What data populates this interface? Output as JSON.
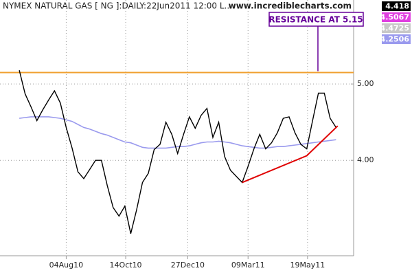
{
  "chart_data": {
    "type": "line",
    "title": "NYMEX NATURAL GAS [ NG ]:DAILY:22Jun2011 12:00 L...",
    "source": "www.incrediblecharts.com",
    "x": [
      "2010-06-09",
      "2010-06-16",
      "2010-06-23",
      "2010-06-30",
      "2010-07-07",
      "2010-07-14",
      "2010-07-21",
      "2010-07-28",
      "2010-08-04",
      "2010-08-11",
      "2010-08-18",
      "2010-08-25",
      "2010-09-01",
      "2010-09-08",
      "2010-09-15",
      "2010-09-22",
      "2010-09-29",
      "2010-10-06",
      "2010-10-13",
      "2010-10-20",
      "2010-10-27",
      "2010-11-03",
      "2010-11-10",
      "2010-11-17",
      "2010-11-24",
      "2010-12-01",
      "2010-12-08",
      "2010-12-15",
      "2010-12-22",
      "2010-12-29",
      "2011-01-05",
      "2011-01-12",
      "2011-01-19",
      "2011-01-26",
      "2011-02-02",
      "2011-02-09",
      "2011-02-16",
      "2011-02-23",
      "2011-03-02",
      "2011-03-09",
      "2011-03-16",
      "2011-03-23",
      "2011-03-30",
      "2011-04-06",
      "2011-04-13",
      "2011-04-20",
      "2011-04-27",
      "2011-05-04",
      "2011-05-11",
      "2011-05-18",
      "2011-05-25",
      "2011-06-01",
      "2011-06-08",
      "2011-06-15",
      "2011-06-22"
    ],
    "series": [
      {
        "color": "#000000",
        "width": 1.4,
        "values": [
          5.18,
          4.87,
          4.7,
          4.52,
          4.66,
          4.79,
          4.91,
          4.75,
          4.43,
          4.16,
          3.85,
          3.76,
          3.88,
          4.0,
          4.0,
          3.67,
          3.38,
          3.27,
          3.4,
          3.04,
          3.35,
          3.71,
          3.83,
          4.14,
          4.21,
          4.5,
          4.34,
          4.09,
          4.34,
          4.57,
          4.42,
          4.59,
          4.68,
          4.3,
          4.5,
          4.05,
          3.87,
          3.79,
          3.71,
          3.92,
          4.15,
          4.34,
          4.15,
          4.23,
          4.36,
          4.55,
          4.57,
          4.36,
          4.21,
          4.15,
          4.52,
          4.88,
          4.88,
          4.55,
          4.43
        ]
      },
      {
        "color": "#9a9aee",
        "width": 1.6,
        "values": [
          4.55,
          4.56,
          4.57,
          4.57,
          4.57,
          4.57,
          4.56,
          4.55,
          4.53,
          4.51,
          4.47,
          4.43,
          4.41,
          4.38,
          4.35,
          4.33,
          4.3,
          4.27,
          4.24,
          4.23,
          4.2,
          4.17,
          4.16,
          4.16,
          4.16,
          4.16,
          4.17,
          4.18,
          4.18,
          4.19,
          4.21,
          4.23,
          4.24,
          4.24,
          4.25,
          4.24,
          4.23,
          4.21,
          4.19,
          4.18,
          4.17,
          4.16,
          4.16,
          4.17,
          4.18,
          4.18,
          4.19,
          4.2,
          4.21,
          4.22,
          4.23,
          4.24,
          4.25,
          4.26,
          4.27
        ]
      }
    ],
    "resistance": {
      "value": 5.15,
      "color": "#f0a030"
    },
    "annotation": {
      "text": "RESISTANCE AT 5.15",
      "color": "#660099"
    },
    "trendline": {
      "color": "#e00000",
      "x": [
        "2011-03-02",
        "2011-05-18",
        "2011-06-24"
      ],
      "y": [
        3.71,
        4.06,
        4.45
      ]
    },
    "tags": [
      {
        "text": "4.418",
        "color": "#000000"
      },
      {
        "text": "4.5067",
        "color": "#e040e0"
      },
      {
        "text": "4.4725",
        "color": "#c8c8c8"
      },
      {
        "text": "4.2506",
        "color": "#9a9aee"
      }
    ],
    "xlim": [
      "2010-05-17",
      "2011-07-13"
    ],
    "xticks": [
      {
        "value": "2010-08-04",
        "label": "04Aug10"
      },
      {
        "value": "2010-10-14",
        "label": "14Oct10"
      },
      {
        "value": "2010-12-27",
        "label": "27Dec10"
      },
      {
        "value": "2011-03-09",
        "label": "09Mar11"
      },
      {
        "value": "2011-05-19",
        "label": "19May11"
      }
    ],
    "ylim": [
      2.75,
      6.1
    ],
    "yticks": [
      {
        "value": 4,
        "label": "4.00"
      },
      {
        "value": 5,
        "label": "5.00"
      }
    ]
  }
}
